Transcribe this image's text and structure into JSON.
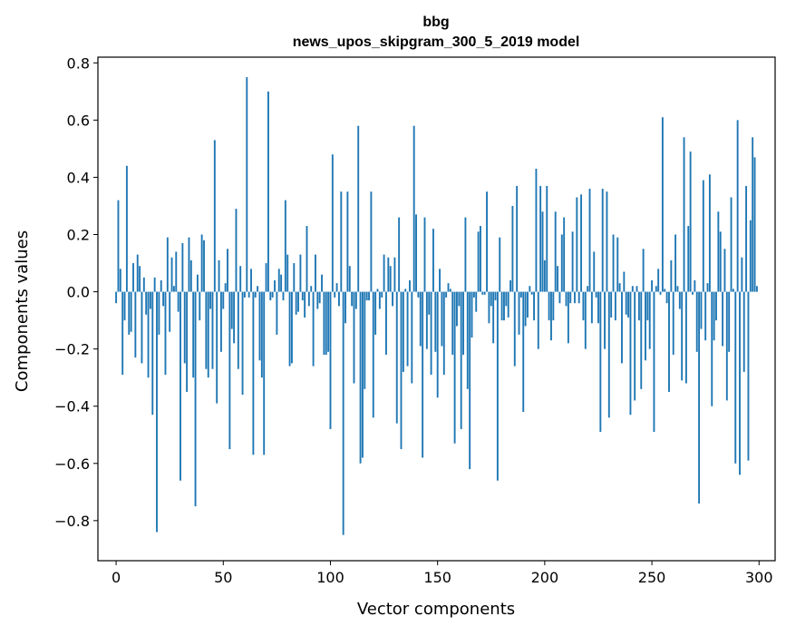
{
  "chart_data": {
    "type": "bar",
    "title": "bbg",
    "subtitle": "news_upos_skipgram_300_5_2019 model",
    "xlabel": "Vector components",
    "ylabel": "Components values",
    "xlim": [
      -8.5,
      307.5
    ],
    "ylim": [
      -0.94,
      0.82
    ],
    "xticks": [
      0,
      50,
      100,
      150,
      200,
      250,
      300
    ],
    "yticks": [
      -0.8,
      -0.6,
      -0.4,
      -0.2,
      0.0,
      0.2,
      0.4,
      0.6,
      0.8
    ],
    "ytick_labels": [
      "−0.8",
      "−0.6",
      "−0.4",
      "−0.2",
      "0.0",
      "0.2",
      "0.4",
      "0.6",
      "0.8"
    ],
    "grid": false,
    "bar_color": "#1f77b4",
    "x": [
      0,
      1,
      2,
      3,
      4,
      5,
      6,
      7,
      8,
      9,
      10,
      11,
      12,
      13,
      14,
      15,
      16,
      17,
      18,
      19,
      20,
      21,
      22,
      23,
      24,
      25,
      26,
      27,
      28,
      29,
      30,
      31,
      32,
      33,
      34,
      35,
      36,
      37,
      38,
      39,
      40,
      41,
      42,
      43,
      44,
      45,
      46,
      47,
      48,
      49,
      50,
      51,
      52,
      53,
      54,
      55,
      56,
      57,
      58,
      59,
      60,
      61,
      62,
      63,
      64,
      65,
      66,
      67,
      68,
      69,
      70,
      71,
      72,
      73,
      74,
      75,
      76,
      77,
      78,
      79,
      80,
      81,
      82,
      83,
      84,
      85,
      86,
      87,
      88,
      89,
      90,
      91,
      92,
      93,
      94,
      95,
      96,
      97,
      98,
      99,
      100,
      101,
      102,
      103,
      104,
      105,
      106,
      107,
      108,
      109,
      110,
      111,
      112,
      113,
      114,
      115,
      116,
      117,
      118,
      119,
      120,
      121,
      122,
      123,
      124,
      125,
      126,
      127,
      128,
      129,
      130,
      131,
      132,
      133,
      134,
      135,
      136,
      137,
      138,
      139,
      140,
      141,
      142,
      143,
      144,
      145,
      146,
      147,
      148,
      149,
      150,
      151,
      152,
      153,
      154,
      155,
      156,
      157,
      158,
      159,
      160,
      161,
      162,
      163,
      164,
      165,
      166,
      167,
      168,
      169,
      170,
      171,
      172,
      173,
      174,
      175,
      176,
      177,
      178,
      179,
      180,
      181,
      182,
      183,
      184,
      185,
      186,
      187,
      188,
      189,
      190,
      191,
      192,
      193,
      194,
      195,
      196,
      197,
      198,
      199,
      200,
      201,
      202,
      203,
      204,
      205,
      206,
      207,
      208,
      209,
      210,
      211,
      212,
      213,
      214,
      215,
      216,
      217,
      218,
      219,
      220,
      221,
      222,
      223,
      224,
      225,
      226,
      227,
      228,
      229,
      230,
      231,
      232,
      233,
      234,
      235,
      236,
      237,
      238,
      239,
      240,
      241,
      242,
      243,
      244,
      245,
      246,
      247,
      248,
      249,
      250,
      251,
      252,
      253,
      254,
      255,
      256,
      257,
      258,
      259,
      260,
      261,
      262,
      263,
      264,
      265,
      266,
      267,
      268,
      269,
      270,
      271,
      272,
      273,
      274,
      275,
      276,
      277,
      278,
      279,
      280,
      281,
      282,
      283,
      284,
      285,
      286,
      287,
      288,
      289,
      290,
      291,
      292,
      293,
      294,
      295,
      296,
      297,
      298,
      299
    ],
    "values": [
      -0.04,
      0.32,
      0.08,
      -0.29,
      -0.1,
      0.44,
      -0.15,
      -0.14,
      0.1,
      -0.23,
      0.13,
      0.09,
      -0.25,
      0.05,
      -0.08,
      -0.3,
      -0.06,
      -0.43,
      0.05,
      -0.84,
      -0.15,
      0.04,
      -0.05,
      -0.29,
      0.19,
      -0.14,
      0.12,
      0.02,
      0.14,
      -0.07,
      -0.66,
      0.17,
      -0.25,
      -0.35,
      0.19,
      0.11,
      -0.3,
      -0.75,
      0.06,
      -0.1,
      0.2,
      0.18,
      -0.27,
      -0.3,
      -0.06,
      -0.27,
      0.53,
      -0.39,
      0.11,
      -0.21,
      -0.06,
      0.03,
      0.15,
      -0.55,
      -0.13,
      -0.18,
      0.29,
      -0.27,
      0.09,
      -0.36,
      -0.02,
      0.75,
      -0.02,
      0.08,
      -0.57,
      -0.02,
      0.02,
      -0.24,
      -0.3,
      -0.57,
      0.1,
      0.7,
      -0.03,
      -0.02,
      0.04,
      -0.15,
      0.08,
      0.06,
      -0.03,
      0.32,
      0.13,
      -0.26,
      -0.25,
      0.1,
      -0.08,
      -0.07,
      0.13,
      -0.03,
      -0.09,
      0.23,
      -0.05,
      0.02,
      -0.26,
      0.13,
      -0.06,
      -0.04,
      0.06,
      -0.22,
      -0.22,
      -0.21,
      -0.48,
      0.48,
      -0.02,
      0.03,
      -0.05,
      0.35,
      -0.85,
      -0.11,
      0.35,
      0.09,
      -0.05,
      -0.32,
      -0.06,
      0.58,
      -0.6,
      -0.58,
      -0.34,
      -0.03,
      -0.03,
      0.35,
      -0.44,
      -0.15,
      0.01,
      -0.06,
      -0.02,
      0.13,
      -0.22,
      0.12,
      0.09,
      -0.05,
      0.12,
      -0.46,
      0.26,
      -0.55,
      -0.28,
      0.01,
      -0.26,
      0.04,
      -0.32,
      0.58,
      0.27,
      -0.02,
      -0.19,
      -0.58,
      0.26,
      -0.2,
      -0.08,
      -0.29,
      0.22,
      -0.21,
      -0.37,
      0.08,
      -0.19,
      -0.29,
      -0.02,
      0.03,
      0.01,
      -0.22,
      -0.53,
      -0.12,
      -0.05,
      -0.48,
      -0.22,
      0.26,
      -0.34,
      -0.62,
      -0.16,
      -0.02,
      -0.07,
      0.21,
      0.23,
      -0.01,
      -0.01,
      0.35,
      -0.11,
      -0.05,
      -0.18,
      -0.03,
      -0.66,
      0.19,
      -0.1,
      -0.1,
      -0.05,
      -0.09,
      0.04,
      0.3,
      -0.26,
      0.37,
      -0.15,
      -0.02,
      -0.42,
      -0.12,
      -0.09,
      0.02,
      -0.01,
      -0.1,
      0.43,
      -0.2,
      0.37,
      0.28,
      0.11,
      0.37,
      -0.1,
      -0.17,
      -0.1,
      0.28,
      0.09,
      -0.04,
      0.2,
      0.26,
      -0.05,
      -0.18,
      -0.04,
      0.21,
      -0.04,
      0.33,
      -0.04,
      0.34,
      -0.1,
      -0.2,
      0.02,
      0.36,
      -0.11,
      0.14,
      -0.02,
      -0.11,
      -0.49,
      0.36,
      -0.2,
      0.35,
      -0.44,
      -0.09,
      0.2,
      -0.1,
      0.19,
      0.03,
      -0.25,
      0.07,
      -0.08,
      -0.09,
      -0.43,
      0.02,
      -0.38,
      0.02,
      -0.1,
      -0.34,
      0.15,
      -0.24,
      -0.1,
      -0.2,
      0.04,
      -0.49,
      0.02,
      0.08,
      -0.01,
      0.61,
      0.01,
      -0.04,
      -0.35,
      0.11,
      -0.22,
      0.2,
      0.02,
      -0.06,
      -0.31,
      0.54,
      -0.32,
      0.23,
      0.49,
      -0.01,
      0.04,
      -0.21,
      -0.74,
      -0.13,
      0.39,
      -0.17,
      0.03,
      0.41,
      -0.4,
      -0.17,
      -0.1,
      0.28,
      0.21,
      -0.19,
      0.15,
      -0.38,
      -0.21,
      0.33,
      0.01,
      -0.6,
      0.6,
      -0.64,
      0.12,
      -0.28,
      0.37,
      -0.59,
      0.25,
      0.54,
      0.47,
      0.02
    ],
    "note_values": "values read off the y axis; x is the component index"
  }
}
